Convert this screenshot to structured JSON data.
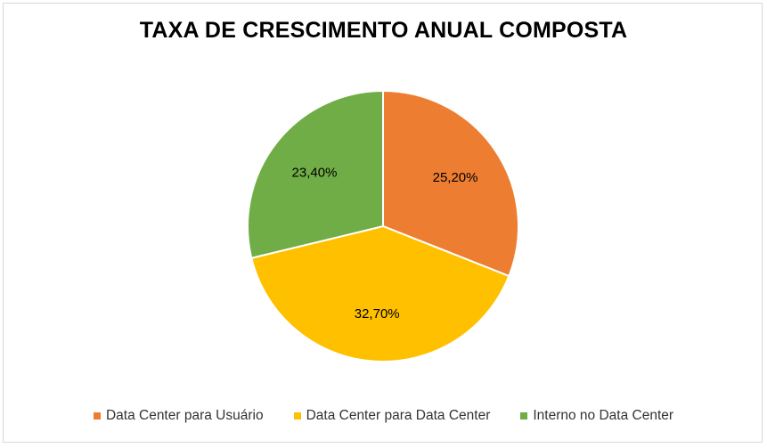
{
  "chart_data": {
    "type": "pie",
    "title": "TAXA DE CRESCIMENTO ANUAL COMPOSTA",
    "slices": [
      {
        "name": "Data Center para Usuário",
        "value": 25.2,
        "label": "25,20%",
        "color": "#ED7D31"
      },
      {
        "name": "Data Center para Data Center",
        "value": 32.7,
        "label": "32,70%",
        "color": "#FFC000"
      },
      {
        "name": "Interno no Data Center",
        "value": 23.4,
        "label": "23,40%",
        "color": "#70AD47"
      }
    ],
    "legend_position": "bottom",
    "start_angle": "12 o'clock",
    "direction": "clockwise"
  }
}
